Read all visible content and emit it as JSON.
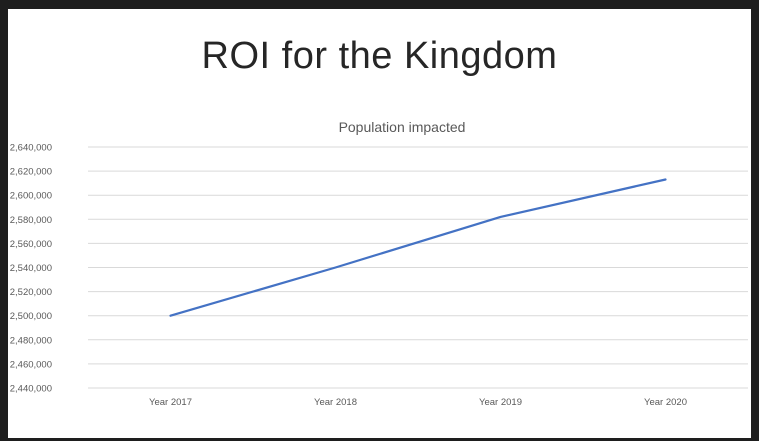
{
  "slide": {
    "title": "ROI for the Kingdom"
  },
  "colors": {
    "frame": "#1e1e1e",
    "series": "#4472c4",
    "grid": "#d9d9d9",
    "text": "#595959"
  },
  "chart_data": {
    "type": "line",
    "title": "Population impacted",
    "xlabel": "",
    "ylabel": "",
    "categories": [
      "Year 2017",
      "Year 2018",
      "Year 2019",
      "Year 2020"
    ],
    "series": [
      {
        "values": [
          2500000,
          2540000,
          2582000,
          2613000
        ]
      }
    ],
    "ylim": [
      2440000,
      2640000
    ],
    "ytick_step": 20000,
    "ytick_labels": [
      "2,440,000",
      "2,460,000",
      "2,480,000",
      "2,500,000",
      "2,520,000",
      "2,540,000",
      "2,560,000",
      "2,580,000",
      "2,600,000",
      "2,620,000",
      "2,640,000"
    ],
    "grid": true,
    "legend": "none"
  }
}
